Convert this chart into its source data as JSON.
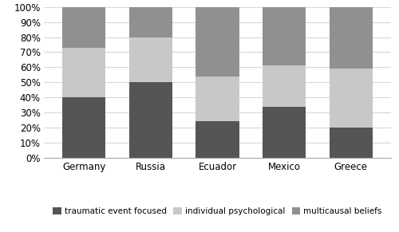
{
  "categories": [
    "Germany",
    "Russia",
    "Ecuador",
    "Mexico",
    "Greece"
  ],
  "series": {
    "traumatic event focused": [
      40,
      50,
      24,
      34,
      20
    ],
    "individual psychological": [
      33,
      30,
      30,
      27,
      39
    ],
    "multicausal beliefs": [
      27,
      20,
      46,
      39,
      41
    ]
  },
  "colors": {
    "traumatic event focused": "#555555",
    "individual psychological": "#c8c8c8",
    "multicausal beliefs": "#909090"
  },
  "legend_labels": [
    "traumatic event focused",
    "individual psychological",
    "multicausal beliefs"
  ],
  "yticks": [
    0,
    10,
    20,
    30,
    40,
    50,
    60,
    70,
    80,
    90,
    100
  ],
  "ytick_labels": [
    "0%",
    "10%",
    "20%",
    "30%",
    "40%",
    "50%",
    "60%",
    "70%",
    "80%",
    "90%",
    "100%"
  ],
  "ylim": [
    0,
    100
  ],
  "background_color": "#ffffff",
  "bar_width": 0.65
}
